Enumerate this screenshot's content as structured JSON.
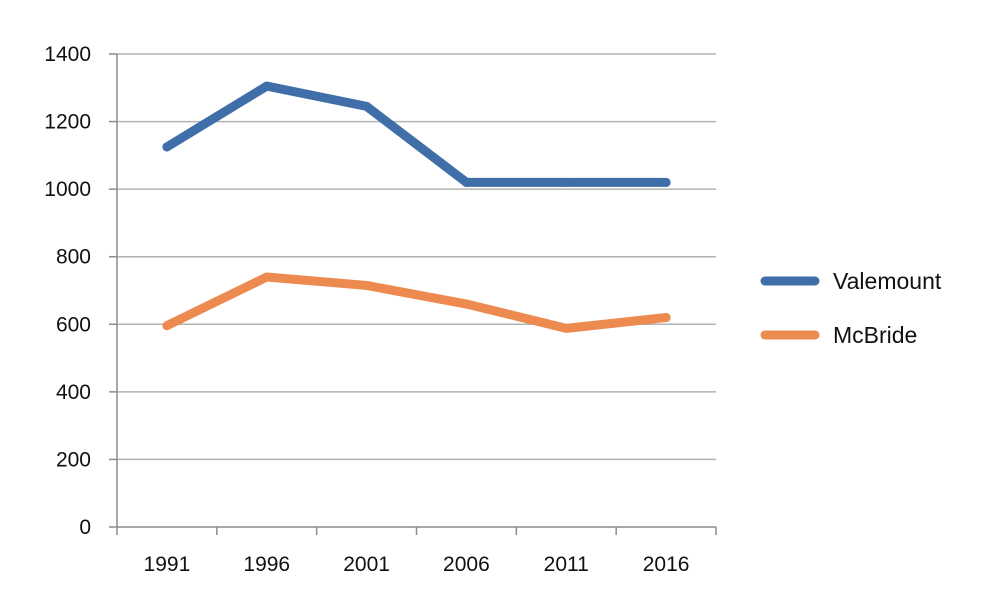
{
  "chart_data": {
    "type": "line",
    "title": "",
    "xlabel": "",
    "ylabel": "",
    "categories": [
      "1991",
      "1996",
      "2001",
      "2006",
      "2011",
      "2016"
    ],
    "ylim": [
      0,
      1400
    ],
    "yticks": [
      "0",
      "200",
      "400",
      "600",
      "800",
      "1000",
      "1200",
      "1400"
    ],
    "grid": true,
    "legend_position": "right",
    "series": [
      {
        "name": "Valemount",
        "color": "#3f6ea8",
        "values": [
          1125,
          1305,
          1245,
          1020,
          1020,
          1020
        ]
      },
      {
        "name": "McBride",
        "color": "#ed8a4f",
        "values": [
          596,
          740,
          715,
          660,
          588,
          620
        ]
      }
    ]
  }
}
